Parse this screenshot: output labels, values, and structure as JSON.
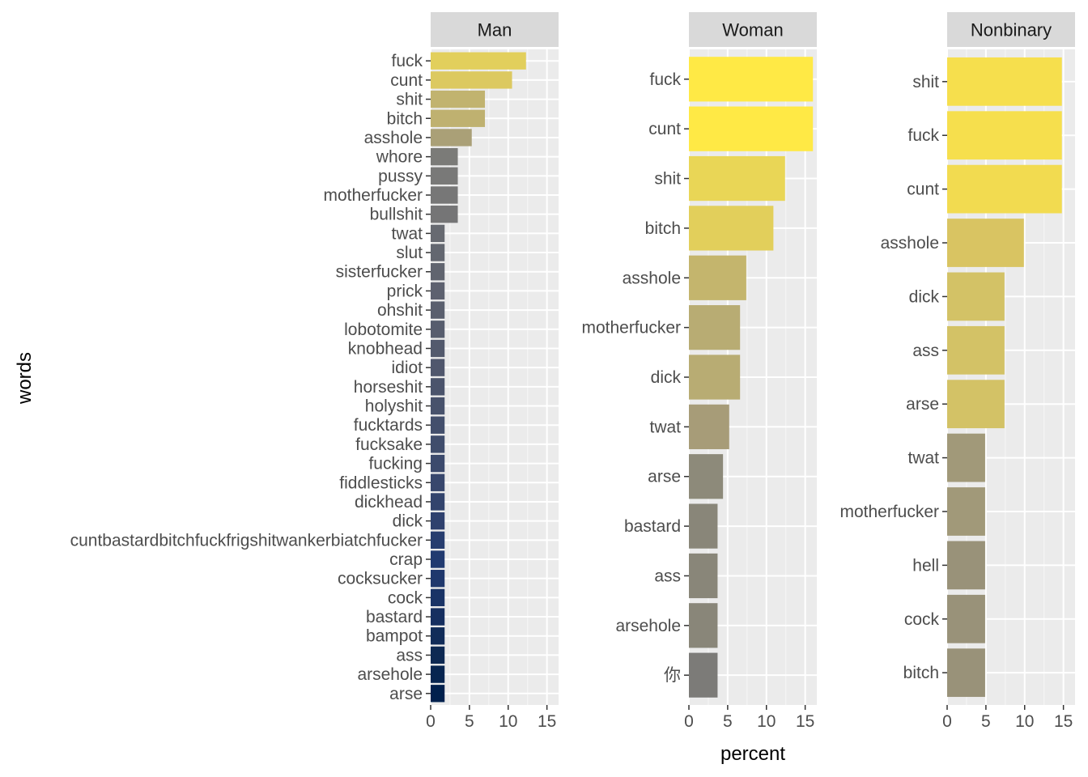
{
  "chart_data": {
    "type": "bar",
    "orientation": "horizontal",
    "faceted": true,
    "xlabel": "percent",
    "ylabel": "words",
    "xlim": [
      0,
      16.5
    ],
    "xticks": [
      0,
      5,
      10,
      15
    ],
    "grid": true,
    "legend": "none",
    "color_scale": {
      "low": "#00204D",
      "mid": "#7C7B78",
      "high": "#FFEA46"
    },
    "panels": [
      {
        "title": "Man",
        "categories": [
          "fuck",
          "cunt",
          "shit",
          "bitch",
          "asshole",
          "whore",
          "pussy",
          "motherfucker",
          "bullshit",
          "twat",
          "slut",
          "sisterfucker",
          "prick",
          "ohshit",
          "lobotomite",
          "knobhead",
          "idiot",
          "horseshit",
          "holyshit",
          "fucktards",
          "fucksake",
          "fucking",
          "fiddlesticks",
          "dickhead",
          "dick",
          "cuntbastardbitchfuckfrigshitwankerbiatchfucker",
          "crap",
          "cocksucker",
          "cock",
          "bastard",
          "bampot",
          "ass",
          "arsehole",
          "arse"
        ],
        "values": [
          12.3,
          10.5,
          7.0,
          7.0,
          5.3,
          3.5,
          3.5,
          3.5,
          3.5,
          1.8,
          1.8,
          1.8,
          1.8,
          1.8,
          1.8,
          1.8,
          1.8,
          1.8,
          1.8,
          1.8,
          1.8,
          1.8,
          1.8,
          1.8,
          1.8,
          1.8,
          1.8,
          1.8,
          1.8,
          1.8,
          1.8,
          1.8,
          1.8,
          1.8
        ],
        "colors": [
          "#E2CF5C",
          "#DCC960",
          "#C1B36F",
          "#BFB170",
          "#AAA077",
          "#7B7B78",
          "#797978",
          "#777777",
          "#757576",
          "#676A71",
          "#636770",
          "#60646F",
          "#5D616F",
          "#5A5F6E",
          "#575D6E",
          "#535A6D",
          "#50576D",
          "#4B546C",
          "#48526C",
          "#434F6C",
          "#404D6C",
          "#3C4A6D",
          "#38476D",
          "#33446D",
          "#2F416E",
          "#273D6F",
          "#213A70",
          "#1F386D",
          "#193366",
          "#162F60",
          "#112C59",
          "#0D2953",
          "#072550",
          "#00204D"
        ]
      },
      {
        "title": "Woman",
        "categories": [
          "fuck",
          "cunt",
          "shit",
          "bitch",
          "asshole",
          "motherfucker",
          "dick",
          "twat",
          "arse",
          "bastard",
          "ass",
          "arsehole",
          "你"
        ],
        "values": [
          16.0,
          16.0,
          12.4,
          10.9,
          7.4,
          6.6,
          6.6,
          5.2,
          4.4,
          3.7,
          3.7,
          3.7,
          3.7
        ],
        "colors": [
          "#FFE945",
          "#FFE945",
          "#E9D656",
          "#E2CF5B",
          "#C4B56D",
          "#B8AC73",
          "#B8AC73",
          "#A79C78",
          "#8D8A7A",
          "#898679",
          "#898679",
          "#898679",
          "#7C7B78"
        ]
      },
      {
        "title": "Nonbinary",
        "categories": [
          "shit",
          "fuck",
          "cunt",
          "asshole",
          "dick",
          "ass",
          "arse",
          "twat",
          "motherfucker",
          "hell",
          "cock",
          "bitch"
        ],
        "values": [
          14.8,
          14.8,
          14.8,
          9.9,
          7.4,
          7.4,
          7.4,
          4.9,
          4.9,
          4.9,
          4.9,
          4.9
        ],
        "colors": [
          "#F6DF4D",
          "#F6DF4D",
          "#F2DB50",
          "#D9C462",
          "#D3C266",
          "#D3C266",
          "#D3C266",
          "#A19979",
          "#A19979",
          "#999279",
          "#999279",
          "#999279"
        ]
      }
    ]
  }
}
